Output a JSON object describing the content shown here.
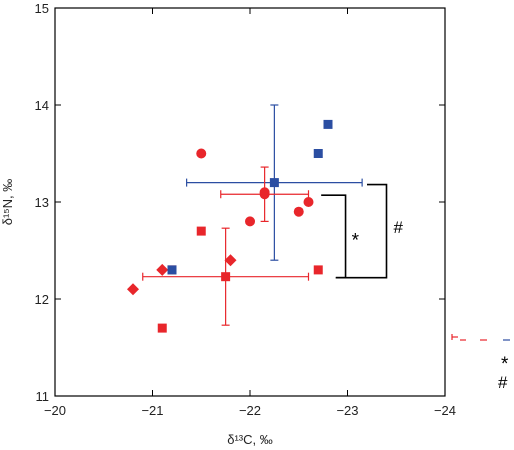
{
  "chart_data": {
    "type": "scatter",
    "xlabel": "δ¹³C, ‰",
    "ylabel": "δ¹⁵N, ‰",
    "xlim": [
      -20,
      -24
    ],
    "ylim": [
      11,
      15
    ],
    "x_reversed": true,
    "grid": false,
    "xticks": [
      "−20",
      "−21",
      "−22",
      "−23",
      "−24"
    ],
    "yticks": [
      "11",
      "12",
      "13",
      "14",
      "15"
    ],
    "colors": {
      "red": "#e8262b",
      "blue": "#2b4ea2",
      "black": "#000000"
    },
    "series": [
      {
        "marker": "circle",
        "color": "#e8262b",
        "points": [
          [
            -21.5,
            13.5
          ],
          [
            -22.0,
            12.8
          ],
          [
            -22.5,
            12.9
          ],
          [
            -22.6,
            13.0
          ],
          [
            -22.15,
            13.1
          ]
        ]
      },
      {
        "marker": "square",
        "color": "#e8262b",
        "points": [
          [
            -21.5,
            12.7
          ],
          [
            -21.1,
            11.7
          ],
          [
            -22.7,
            12.3
          ],
          [
            -21.2,
            12.3
          ]
        ]
      },
      {
        "marker": "diamond",
        "color": "#e8262b",
        "points": [
          [
            -20.8,
            12.1
          ],
          [
            -21.1,
            12.3
          ],
          [
            -21.8,
            12.4
          ]
        ]
      },
      {
        "marker": "square",
        "color": "#2b4ea2",
        "points": [
          [
            -21.2,
            12.3
          ],
          [
            -22.7,
            13.5
          ],
          [
            -22.8,
            13.8
          ]
        ]
      }
    ],
    "error_bars": [
      {
        "color": "#2b4ea2",
        "marker": "square",
        "x": -22.25,
        "y": 13.2,
        "xerr": 0.9,
        "yerr": 0.8
      },
      {
        "color": "#e8262b",
        "marker": "circle",
        "x": -22.15,
        "y": 13.08,
        "xerr": 0.45,
        "yerr": 0.28
      },
      {
        "color": "#e8262b",
        "marker": "square",
        "x": -21.75,
        "y": 12.23,
        "xerr": 0.85,
        "yerr": 0.5
      }
    ],
    "brackets": [
      {
        "label": "*",
        "y_top": 13.07,
        "y_bottom": 12.22
      },
      {
        "label": "#",
        "y_top": 13.18,
        "y_bottom": 12.22
      }
    ],
    "outside_annotations": [
      "*",
      "#"
    ]
  }
}
